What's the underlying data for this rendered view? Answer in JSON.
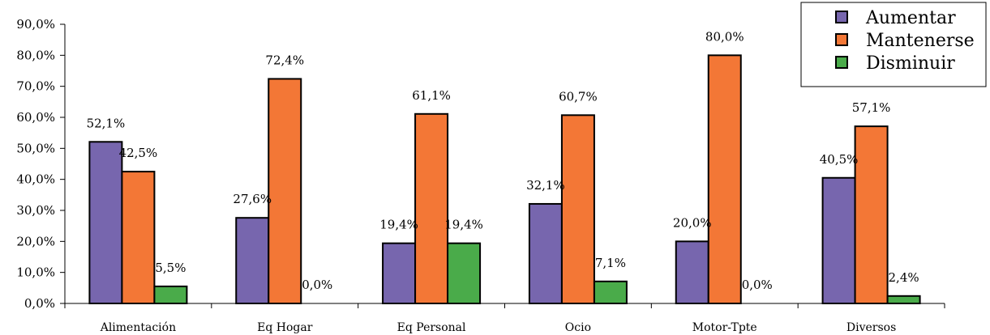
{
  "chart_data": {
    "type": "bar",
    "categories": [
      "Alimentación",
      "Eq Hogar",
      "Eq Personal",
      "Ocio",
      "Motor-Tpte",
      "Diversos"
    ],
    "series": [
      {
        "name": "Aumentar",
        "color": "#7766ae",
        "values": [
          52.1,
          27.6,
          19.4,
          32.1,
          20.0,
          40.5
        ],
        "labels": [
          "52,1%",
          "27,6%",
          "19,4%",
          "32,1%",
          "20,0%",
          "40,5%"
        ]
      },
      {
        "name": "Mantenerse",
        "color": "#f37736",
        "values": [
          42.5,
          72.4,
          61.1,
          60.7,
          80.0,
          57.1
        ],
        "labels": [
          "42,5%",
          "72,4%",
          "61,1%",
          "60,7%",
          "80,0%",
          "57,1%"
        ]
      },
      {
        "name": "Disminuir",
        "color": "#4aab4a",
        "values": [
          5.5,
          0.0,
          19.4,
          7.1,
          0.0,
          2.4
        ],
        "labels": [
          "5,5%",
          "0,0%",
          "19,4%",
          "7,1%",
          "0,0%",
          "2,4%"
        ]
      }
    ],
    "ylim": [
      0,
      90
    ],
    "yticks": [
      0,
      10,
      20,
      30,
      40,
      50,
      60,
      70,
      80,
      90
    ],
    "ytick_labels": [
      "0,0%",
      "10,0%",
      "20,0%",
      "30,0%",
      "40,0%",
      "50,0%",
      "60,0%",
      "70,0%",
      "80,0%",
      "90,0%"
    ],
    "grid": false,
    "legend_position": "top-right"
  }
}
